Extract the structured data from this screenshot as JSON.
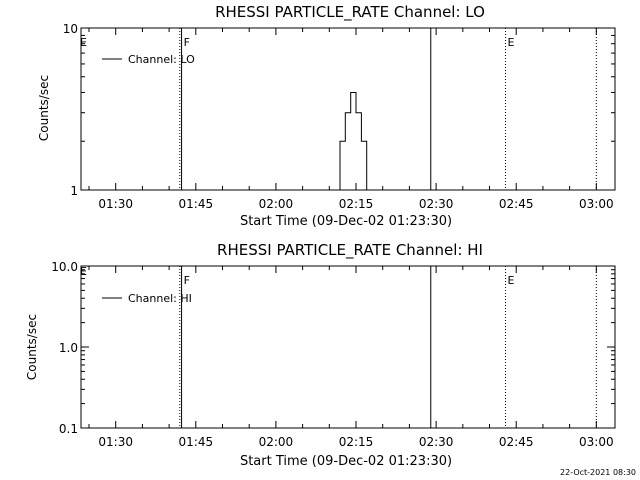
{
  "chart_data": [
    {
      "type": "line",
      "title": "RHESSI PARTICLE_RATE Channel: LO",
      "xlabel": "Start Time (09-Dec-02 01:23:30)",
      "ylabel": "Counts/sec",
      "yscale": "log",
      "ylim": [
        1,
        10
      ],
      "yticks": [
        "1",
        "10"
      ],
      "xlim": [
        "01:23:30",
        "03:03:30"
      ],
      "xticks": [
        "01:30",
        "01:45",
        "02:00",
        "02:15",
        "02:30",
        "02:45",
        "03:00"
      ],
      "legend": {
        "placement": "top-left",
        "entries": [
          "Channel: LO"
        ]
      },
      "series": [
        {
          "name": "Channel: LO",
          "x": [
            "02:11:30",
            "02:12:30",
            "02:13:30",
            "02:14:30",
            "02:15:30",
            "02:16:30",
            "02:17:30",
            "02:18:30"
          ],
          "y": [
            1,
            2,
            3,
            4,
            3,
            2,
            1,
            1
          ]
        }
      ],
      "vlines": [
        {
          "x": "01:42:00",
          "style": "dotted",
          "label": ""
        },
        {
          "x": "01:42:20",
          "style": "solid",
          "label": "F"
        },
        {
          "x": "02:29:00",
          "style": "solid",
          "label": ""
        },
        {
          "x": "02:43:00",
          "style": "dotted",
          "label": "E"
        },
        {
          "x": "03:00:00",
          "style": "dotted",
          "label": ""
        }
      ],
      "edge_label": "E"
    },
    {
      "type": "line",
      "title": "RHESSI PARTICLE_RATE Channel: HI",
      "xlabel": "Start Time (09-Dec-02 01:23:30)",
      "ylabel": "Counts/sec",
      "yscale": "log",
      "ylim": [
        0.1,
        10
      ],
      "yticks": [
        "0.1",
        "1.0",
        "10.0"
      ],
      "xlim": [
        "01:23:30",
        "03:03:30"
      ],
      "xticks": [
        "01:30",
        "01:45",
        "02:00",
        "02:15",
        "02:30",
        "02:45",
        "03:00"
      ],
      "legend": {
        "placement": "top-left",
        "entries": [
          "Channel: HI"
        ]
      },
      "series": [
        {
          "name": "Channel: HI",
          "x": [],
          "y": []
        }
      ],
      "vlines": [
        {
          "x": "01:42:00",
          "style": "dotted",
          "label": ""
        },
        {
          "x": "01:42:20",
          "style": "solid",
          "label": "F"
        },
        {
          "x": "02:29:00",
          "style": "solid",
          "label": ""
        },
        {
          "x": "02:43:00",
          "style": "dotted",
          "label": "E"
        },
        {
          "x": "03:00:00",
          "style": "dotted",
          "label": ""
        }
      ],
      "edge_label": "E"
    }
  ],
  "footer": {
    "timestamp": "22-Oct-2021 08:30"
  }
}
